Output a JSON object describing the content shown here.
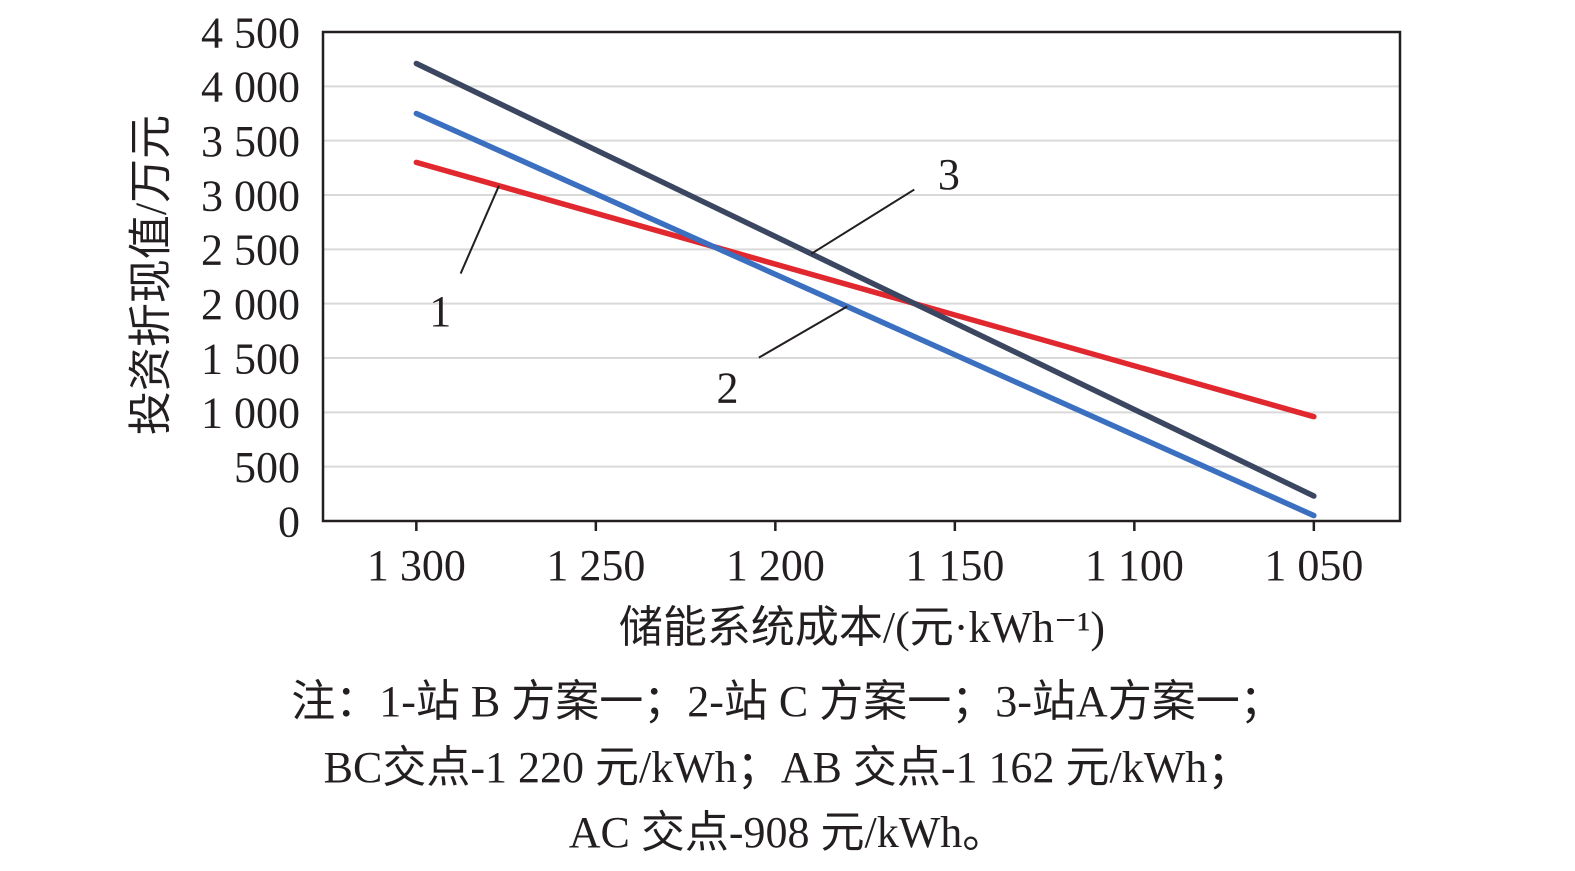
{
  "chart_data": {
    "type": "line",
    "xlabel": "储能系统成本/(元·kWh⁻¹)",
    "ylabel": "投资折现值/万元",
    "xlim": [
      1326,
      1026
    ],
    "ylim": [
      0,
      4500
    ],
    "x_ticks": [
      1300,
      1250,
      1200,
      1150,
      1100,
      1050
    ],
    "x_tick_labels": [
      "1 300",
      "1 250",
      "1 200",
      "1 150",
      "1 100",
      "1 050"
    ],
    "y_ticks": [
      0,
      500,
      1000,
      1500,
      2000,
      2500,
      3000,
      3500,
      4000,
      4500
    ],
    "y_tick_labels": [
      "0",
      "500",
      "1 000",
      "1 500",
      "2 000",
      "2 500",
      "3 000",
      "3 500",
      "4 000",
      "4 500"
    ],
    "grid": "horizontal",
    "x_reversed": true,
    "series": [
      {
        "name": "1",
        "color": "#e0282e",
        "x": [
          1300,
          1050
        ],
        "y": [
          3300,
          960
        ]
      },
      {
        "name": "2",
        "color": "#3b6fc0",
        "x": [
          1300,
          1050
        ],
        "y": [
          3750,
          50
        ]
      },
      {
        "name": "3",
        "color": "#3b4660",
        "x": [
          1300,
          1050
        ],
        "y": [
          4210,
          230
        ]
      }
    ],
    "annotations": [
      {
        "text": "1",
        "series": 0,
        "at_x": 1277,
        "label_x": 1290,
        "label_y": 2100
      },
      {
        "text": "2",
        "series": 1,
        "at_x": 1180,
        "label_x": 1210,
        "label_y": 1400
      },
      {
        "text": "3",
        "series": 2,
        "at_x": 1190,
        "label_x": 1155,
        "label_y": 3180
      }
    ]
  },
  "notes": [
    "注：1-站 B 方案一；2-站 C 方案一；3-站A方案一；",
    "BC交点-1 220 元/kWh；AB 交点-1 162 元/kWh；",
    "AC 交点-908 元/kWh。"
  ]
}
